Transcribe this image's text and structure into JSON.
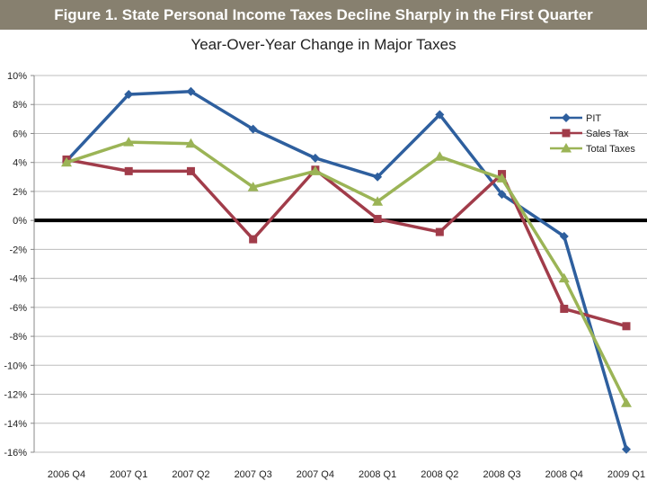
{
  "banner": {
    "text": "Figure 1. State Personal Income Taxes Decline Sharply in the First Quarter"
  },
  "chart_data": {
    "type": "line",
    "title": "Year-Over-Year Change in Major Taxes",
    "xlabel": "",
    "ylabel": "",
    "categories": [
      "2006 Q4",
      "2007 Q1",
      "2007 Q2",
      "2007 Q3",
      "2007 Q4",
      "2008 Q1",
      "2008 Q2",
      "2008 Q3",
      "2008 Q4",
      "2009 Q1"
    ],
    "ylim": [
      -16,
      10
    ],
    "ytick_step": 2,
    "ytick_labels": [
      "10%",
      "8%",
      "6%",
      "4%",
      "2%",
      "0%",
      "-2%",
      "-4%",
      "-6%",
      "-8%",
      "-10%",
      "-12%",
      "-14%",
      "-16%"
    ],
    "grid": true,
    "legend_position": "top-right",
    "series": [
      {
        "name": "PIT",
        "color": "#2e5f9e",
        "marker": "diamond",
        "values": [
          4.1,
          8.7,
          8.9,
          6.3,
          4.3,
          3.0,
          7.3,
          1.8,
          -1.1,
          -15.8
        ]
      },
      {
        "name": "Sales Tax",
        "color": "#a13c4a",
        "marker": "square",
        "values": [
          4.2,
          3.4,
          3.4,
          -1.3,
          3.5,
          0.1,
          -0.8,
          3.2,
          -6.1,
          -7.3
        ]
      },
      {
        "name": "Total Taxes",
        "color": "#9bb456",
        "marker": "triangle",
        "values": [
          4.0,
          5.4,
          5.3,
          2.3,
          3.4,
          1.3,
          4.4,
          2.9,
          -4.0,
          -12.6
        ]
      }
    ]
  }
}
